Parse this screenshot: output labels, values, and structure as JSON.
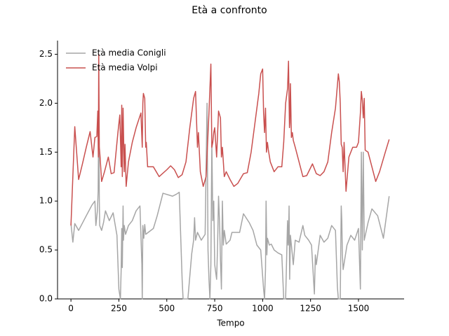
{
  "chart_data": {
    "type": "line",
    "title": "Età a confronto",
    "xlabel": "Tempo",
    "xlim": [
      -70,
      1738
    ],
    "ylim": [
      0,
      2.64
    ],
    "xticks": [
      0,
      250,
      500,
      750,
      1000,
      1250,
      1500
    ],
    "yticks": [
      {
        "value": 0,
        "label": "0.0"
      },
      {
        "value": 0.5,
        "label": "0.5"
      },
      {
        "value": 1,
        "label": "1.0"
      },
      {
        "value": 1.5,
        "label": "1.5"
      },
      {
        "value": 2,
        "label": "2.0"
      },
      {
        "value": 2.5,
        "label": "2.5"
      }
    ],
    "legend": "upper left",
    "series": [
      {
        "name": "Età media Conigli",
        "color": "#a6a6a6",
        "x": [
          0,
          10,
          20,
          40,
          80,
          110,
          125,
          130,
          138,
          142,
          145,
          148,
          150,
          160,
          170,
          180,
          200,
          220,
          240,
          250,
          258,
          262,
          265,
          268,
          272,
          274,
          278,
          285,
          300,
          320,
          340,
          360,
          370,
          372,
          375,
          380,
          385,
          390,
          430,
          450,
          480,
          530,
          550,
          565,
          580,
          585,
          610,
          630,
          640,
          645,
          650,
          660,
          680,
          700,
          710,
          715,
          720,
          725,
          730,
          735,
          740,
          745,
          750,
          760,
          765,
          770,
          775,
          780,
          785,
          790,
          795,
          800,
          810,
          830,
          840,
          880,
          900,
          930,
          950,
          970,
          990,
          1005,
          1010,
          1015,
          1018,
          1022,
          1025,
          1035,
          1045,
          1060,
          1080,
          1100,
          1110,
          1120,
          1125,
          1130,
          1133,
          1135,
          1138,
          1141,
          1145,
          1160,
          1170,
          1190,
          1210,
          1220,
          1240,
          1255,
          1270,
          1275,
          1280,
          1300,
          1320,
          1340,
          1360,
          1380,
          1390,
          1395,
          1405,
          1410,
          1413,
          1416,
          1420,
          1440,
          1460,
          1480,
          1500,
          1510,
          1515,
          1520,
          1525,
          1530,
          1550,
          1570,
          1600,
          1630,
          1660
        ],
        "values": [
          0.77,
          0.58,
          0.77,
          0.7,
          0.85,
          0.96,
          1.0,
          0.75,
          0.9,
          1.1,
          1.95,
          1.0,
          0.75,
          0.7,
          0.78,
          0.9,
          0.8,
          0.88,
          0.65,
          0.1,
          0,
          0.3,
          0.72,
          0.32,
          0.95,
          0.6,
          0.75,
          0.66,
          0.75,
          0.8,
          0.9,
          0.95,
          0.35,
          0,
          0.75,
          0.62,
          0.76,
          0.66,
          0.72,
          0.85,
          1.08,
          1.05,
          1.07,
          1.09,
          0.2,
          0,
          0,
          0.46,
          0.6,
          0.83,
          0.6,
          0.68,
          0.6,
          0.66,
          2.0,
          0.5,
          0.2,
          0,
          0.35,
          1.6,
          0.8,
          1.0,
          0.35,
          0.2,
          0.55,
          1.05,
          0.8,
          0.4,
          0.1,
          1.0,
          0.55,
          0.7,
          0.56,
          0.6,
          0.68,
          0.68,
          0.87,
          0.78,
          0.7,
          0.55,
          0.5,
          0.1,
          0,
          0.3,
          1.0,
          0.45,
          0.62,
          0.55,
          0.56,
          0.5,
          0.47,
          0.45,
          0,
          0,
          0.4,
          0.8,
          0.55,
          0.6,
          0.95,
          0.2,
          0.65,
          0.35,
          0.6,
          0.58,
          0.75,
          0.65,
          0.6,
          0.55,
          0.05,
          0.45,
          0.35,
          0.65,
          0.58,
          0.62,
          0.75,
          0.7,
          0.12,
          0,
          0,
          0.95,
          0.8,
          0.45,
          0.3,
          0.55,
          0.65,
          0.6,
          0.72,
          0.1,
          1.5,
          0.5,
          1.5,
          0.6,
          0.78,
          0.92,
          0.85,
          0.62,
          1.05
        ]
      },
      {
        "name": "Età media Volpi",
        "color": "#c9504f",
        "x": [
          0,
          20,
          40,
          60,
          80,
          100,
          115,
          125,
          135,
          140,
          143,
          145,
          148,
          152,
          160,
          175,
          195,
          210,
          225,
          245,
          255,
          262,
          265,
          268,
          272,
          278,
          282,
          288,
          300,
          320,
          340,
          365,
          372,
          375,
          378,
          385,
          390,
          393,
          400,
          430,
          460,
          500,
          520,
          540,
          560,
          580,
          600,
          620,
          640,
          650,
          660,
          665,
          675,
          690,
          705,
          720,
          730,
          735,
          740,
          745,
          750,
          760,
          770,
          780,
          785,
          790,
          800,
          810,
          830,
          850,
          870,
          900,
          920,
          940,
          960,
          980,
          990,
          1000,
          1005,
          1010,
          1015,
          1020,
          1025,
          1030,
          1040,
          1060,
          1080,
          1100,
          1110,
          1120,
          1130,
          1135,
          1140,
          1142,
          1145,
          1150,
          1155,
          1160,
          1170,
          1190,
          1210,
          1230,
          1260,
          1280,
          1300,
          1320,
          1340,
          1360,
          1380,
          1395,
          1400,
          1405,
          1410,
          1415,
          1420,
          1425,
          1435,
          1450,
          1470,
          1490,
          1500,
          1510,
          1515,
          1520,
          1525,
          1530,
          1535,
          1550,
          1570,
          1590,
          1610,
          1640,
          1660
        ],
        "values": [
          0.75,
          1.76,
          1.22,
          1.38,
          1.55,
          1.71,
          1.45,
          1.65,
          1.66,
          1.92,
          1.45,
          2.5,
          1.55,
          1.45,
          1.2,
          1.3,
          1.45,
          1.28,
          1.29,
          1.7,
          1.88,
          1.35,
          1.98,
          1.25,
          1.95,
          1.3,
          1.58,
          1.15,
          1.4,
          1.6,
          1.75,
          1.9,
          1.55,
          2.0,
          2.1,
          2.05,
          1.55,
          1.6,
          1.35,
          1.35,
          1.25,
          1.32,
          1.36,
          1.32,
          1.24,
          1.27,
          1.4,
          1.75,
          2.05,
          2.12,
          1.55,
          1.7,
          1.3,
          1.15,
          1.25,
          1.9,
          2.4,
          1.55,
          1.6,
          1.7,
          1.75,
          1.45,
          1.92,
          1.85,
          1.45,
          1.55,
          1.25,
          1.3,
          1.22,
          1.15,
          1.18,
          1.28,
          1.29,
          1.5,
          1.8,
          2.1,
          2.3,
          2.35,
          1.9,
          1.7,
          1.95,
          1.5,
          1.6,
          1.52,
          1.4,
          1.3,
          1.35,
          1.35,
          1.6,
          2.0,
          2.15,
          2.43,
          1.75,
          1.8,
          2.2,
          1.65,
          1.7,
          1.62,
          1.55,
          1.4,
          1.25,
          1.26,
          1.38,
          1.28,
          1.26,
          1.3,
          1.4,
          1.7,
          1.95,
          2.3,
          2.22,
          2.0,
          1.58,
          1.55,
          1.3,
          1.6,
          1.1,
          1.45,
          1.55,
          1.55,
          1.6,
          1.9,
          2.12,
          2.03,
          1.85,
          2.05,
          1.52,
          1.5,
          1.35,
          1.2,
          1.3,
          1.5,
          1.63
        ]
      }
    ]
  }
}
